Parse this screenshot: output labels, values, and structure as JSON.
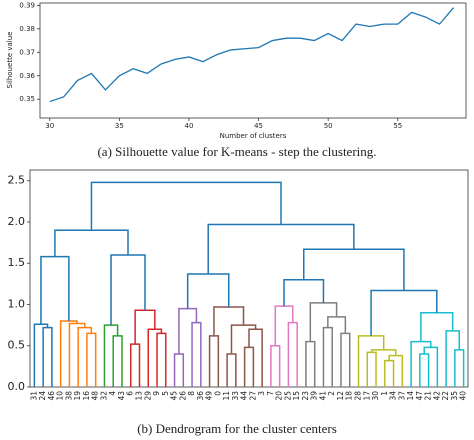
{
  "chart_data": [
    {
      "type": "line",
      "caption": "(a) Silhouette value for K-means - step the clustering.",
      "x_label": "Number of clusters",
      "y_label": "Silhouette value",
      "x": [
        30,
        31,
        32,
        33,
        34,
        35,
        36,
        37,
        38,
        39,
        40,
        41,
        42,
        43,
        44,
        45,
        46,
        47,
        48,
        49,
        50,
        51,
        52,
        53,
        54,
        55,
        56,
        57,
        58,
        59
      ],
      "series": [
        {
          "color": "#1f77b4",
          "values": [
            0.349,
            0.351,
            0.358,
            0.361,
            0.354,
            0.36,
            0.363,
            0.361,
            0.365,
            0.367,
            0.368,
            0.366,
            0.369,
            0.371,
            0.3715,
            0.372,
            0.375,
            0.376,
            0.376,
            0.375,
            0.378,
            0.375,
            0.382,
            0.381,
            0.382,
            0.382,
            0.387,
            0.385,
            0.382,
            0.389
          ]
        }
      ],
      "xlim": [
        29.3,
        59.9
      ],
      "xticks": [
        30,
        35,
        40,
        45,
        50,
        55
      ],
      "ylim": [
        0.342,
        0.391
      ],
      "yticks": [
        0.35,
        0.36,
        0.37,
        0.38,
        0.39
      ]
    },
    {
      "type": "dendrogram",
      "caption": "(b) Dendrogram for the cluster centers",
      "leaves": [
        "31",
        "24",
        "46",
        "10",
        "38",
        "19",
        "16",
        "48",
        "32",
        "4",
        "43",
        "6",
        "13",
        "29",
        "9",
        "5",
        "45",
        "26",
        "8",
        "36",
        "49",
        "0",
        "11",
        "33",
        "44",
        "27",
        "3",
        "7",
        "20",
        "25",
        "15",
        "23",
        "39",
        "41",
        "2",
        "12",
        "18",
        "28",
        "17",
        "30",
        "1",
        "34",
        "37",
        "14",
        "47",
        "21",
        "42",
        "22",
        "35",
        "40"
      ],
      "links": [
        {
          "children": [
            1,
            2
          ],
          "height": 0.72,
          "color": "#1f77b4"
        },
        {
          "children": [
            0,
            50
          ],
          "height": 0.76,
          "color": "#1f77b4"
        },
        {
          "children": [
            6,
            7
          ],
          "height": 0.65,
          "color": "#ff7f0e"
        },
        {
          "children": [
            5,
            52
          ],
          "height": 0.72,
          "color": "#ff7f0e"
        },
        {
          "children": [
            4,
            53
          ],
          "height": 0.77,
          "color": "#ff7f0e"
        },
        {
          "children": [
            3,
            54
          ],
          "height": 0.8,
          "color": "#ff7f0e"
        },
        {
          "children": [
            9,
            10
          ],
          "height": 0.62,
          "color": "#2ca02c"
        },
        {
          "children": [
            8,
            56
          ],
          "height": 0.75,
          "color": "#2ca02c"
        },
        {
          "children": [
            14,
            15
          ],
          "height": 0.65,
          "color": "#d62728"
        },
        {
          "children": [
            13,
            58
          ],
          "height": 0.7,
          "color": "#d62728"
        },
        {
          "children": [
            11,
            12
          ],
          "height": 0.52,
          "color": "#d62728"
        },
        {
          "children": [
            60,
            59
          ],
          "height": 0.93,
          "color": "#d62728"
        },
        {
          "children": [
            16,
            17
          ],
          "height": 0.4,
          "color": "#9467bd"
        },
        {
          "children": [
            18,
            19
          ],
          "height": 0.78,
          "color": "#9467bd"
        },
        {
          "children": [
            62,
            63
          ],
          "height": 0.95,
          "color": "#9467bd"
        },
        {
          "children": [
            20,
            21
          ],
          "height": 0.62,
          "color": "#8c564b"
        },
        {
          "children": [
            22,
            23
          ],
          "height": 0.4,
          "color": "#8c564b"
        },
        {
          "children": [
            24,
            25
          ],
          "height": 0.48,
          "color": "#8c564b"
        },
        {
          "children": [
            67,
            26
          ],
          "height": 0.7,
          "color": "#8c564b"
        },
        {
          "children": [
            66,
            68
          ],
          "height": 0.75,
          "color": "#8c564b"
        },
        {
          "children": [
            65,
            69
          ],
          "height": 0.97,
          "color": "#8c564b"
        },
        {
          "children": [
            27,
            28
          ],
          "height": 0.5,
          "color": "#e377c2"
        },
        {
          "children": [
            29,
            30
          ],
          "height": 0.78,
          "color": "#e377c2"
        },
        {
          "children": [
            71,
            72
          ],
          "height": 0.98,
          "color": "#e377c2"
        },
        {
          "children": [
            31,
            32
          ],
          "height": 0.55,
          "color": "#7f7f7f"
        },
        {
          "children": [
            33,
            34
          ],
          "height": 0.72,
          "color": "#7f7f7f"
        },
        {
          "children": [
            35,
            36
          ],
          "height": 0.65,
          "color": "#7f7f7f"
        },
        {
          "children": [
            75,
            76
          ],
          "height": 0.85,
          "color": "#7f7f7f"
        },
        {
          "children": [
            74,
            77
          ],
          "height": 1.02,
          "color": "#7f7f7f"
        },
        {
          "children": [
            38,
            39
          ],
          "height": 0.42,
          "color": "#bcbd22"
        },
        {
          "children": [
            40,
            41
          ],
          "height": 0.32,
          "color": "#bcbd22"
        },
        {
          "children": [
            80,
            42
          ],
          "height": 0.38,
          "color": "#bcbd22"
        },
        {
          "children": [
            79,
            81
          ],
          "height": 0.45,
          "color": "#bcbd22"
        },
        {
          "children": [
            37,
            82
          ],
          "height": 0.62,
          "color": "#bcbd22"
        },
        {
          "children": [
            44,
            45
          ],
          "height": 0.4,
          "color": "#17becf"
        },
        {
          "children": [
            84,
            46
          ],
          "height": 0.48,
          "color": "#17becf"
        },
        {
          "children": [
            43,
            85
          ],
          "height": 0.55,
          "color": "#17becf"
        },
        {
          "children": [
            48,
            49
          ],
          "height": 0.45,
          "color": "#17becf"
        },
        {
          "children": [
            47,
            87
          ],
          "height": 0.68,
          "color": "#17becf"
        },
        {
          "children": [
            86,
            88
          ],
          "height": 0.9,
          "color": "#17becf"
        },
        {
          "children": [
            51,
            55
          ],
          "height": 1.58,
          "color": "#1f77b4"
        },
        {
          "children": [
            57,
            61
          ],
          "height": 1.6,
          "color": "#1f77b4"
        },
        {
          "children": [
            90,
            91
          ],
          "height": 1.9,
          "color": "#1f77b4"
        },
        {
          "children": [
            64,
            70
          ],
          "height": 1.37,
          "color": "#1f77b4"
        },
        {
          "children": [
            73,
            78
          ],
          "height": 1.3,
          "color": "#1f77b4"
        },
        {
          "children": [
            83,
            89
          ],
          "height": 1.17,
          "color": "#1f77b4"
        },
        {
          "children": [
            94,
            95
          ],
          "height": 1.67,
          "color": "#1f77b4"
        },
        {
          "children": [
            93,
            96
          ],
          "height": 1.97,
          "color": "#1f77b4"
        },
        {
          "children": [
            92,
            97
          ],
          "height": 2.48,
          "color": "#1f77b4"
        }
      ],
      "ylim": [
        0,
        2.63
      ],
      "yticks": [
        {
          "value": 0,
          "label": "0.0"
        },
        0.5,
        {
          "value": 1,
          "label": "1.0"
        },
        1.5,
        {
          "value": 2,
          "label": "2.0"
        },
        2.5
      ]
    }
  ]
}
